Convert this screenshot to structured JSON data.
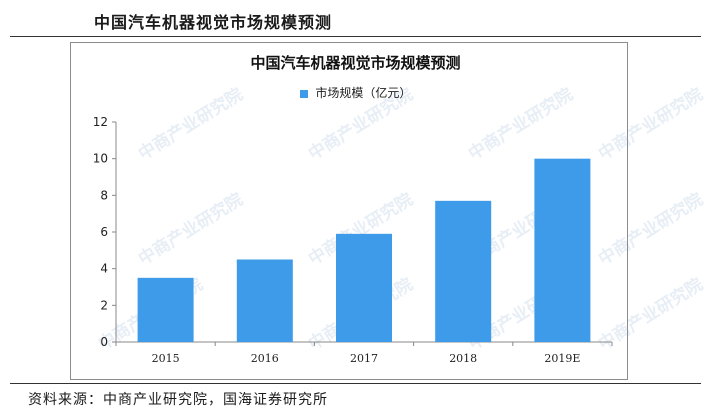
{
  "header": {
    "title": "中国汽车机器视觉市场规模预测"
  },
  "footer": {
    "source": "资料来源：中商产业研究院，国海证券研究所"
  },
  "watermark": {
    "text": "中商产业研究院"
  },
  "chart_data": {
    "type": "bar",
    "title": "中国汽车机器视觉市场规模预测",
    "categories": [
      "2015",
      "2016",
      "2017",
      "2018",
      "2019E"
    ],
    "series": [
      {
        "name": "市场规模（亿元）",
        "values": [
          3.5,
          4.5,
          5.9,
          7.7,
          10.0
        ],
        "color": "#3d9be9"
      }
    ],
    "xlabel": "",
    "ylabel": "",
    "ylim": [
      0,
      12
    ],
    "yticks": [
      0,
      2,
      4,
      6,
      8,
      10,
      12
    ],
    "grid": false,
    "legend_position": "top"
  }
}
